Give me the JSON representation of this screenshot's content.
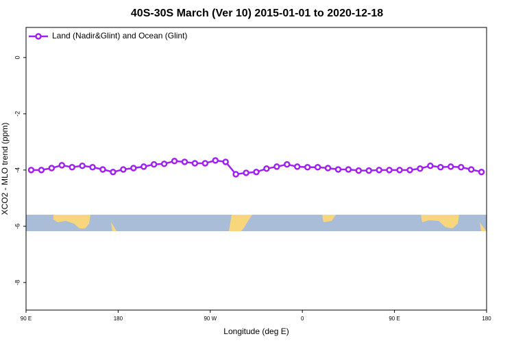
{
  "chart_data": {
    "type": "line",
    "title": "40S-30S March (Ver 10)   2015-01-01 to 2020-12-18",
    "xlabel": "Longitude (deg E)",
    "ylabel": "XCO2 - MLO trend (ppm)",
    "xlim": [
      90,
      540
    ],
    "ylim": [
      -8.98,
      1.07
    ],
    "xticks": [
      {
        "value": 90,
        "label": "90 E"
      },
      {
        "value": 180,
        "label": "180"
      },
      {
        "value": 270,
        "label": "90 W"
      },
      {
        "value": 360,
        "label": "0"
      },
      {
        "value": 450,
        "label": "90 E"
      },
      {
        "value": 540,
        "label": "180"
      }
    ],
    "yticks": [
      0,
      -2,
      -4,
      -6,
      -8
    ],
    "legend": "top-left",
    "series": [
      {
        "name": "Land (Nadir&Glint) and Ocean (Glint)",
        "color": "#a020f0",
        "x": [
          95,
          105,
          115,
          125,
          135,
          145,
          155,
          165,
          175,
          185,
          195,
          205,
          215,
          225,
          235,
          245,
          255,
          265,
          275,
          285,
          295,
          305,
          315,
          325,
          335,
          345,
          355,
          365,
          375,
          385,
          395,
          405,
          415,
          425,
          435,
          445,
          455,
          465,
          475,
          485,
          495,
          505,
          515,
          525,
          535
        ],
        "values": [
          -4.0,
          -4.0,
          -3.93,
          -3.83,
          -3.9,
          -3.85,
          -3.9,
          -3.98,
          -4.07,
          -3.98,
          -3.93,
          -3.88,
          -3.8,
          -3.78,
          -3.68,
          -3.71,
          -3.76,
          -3.76,
          -3.66,
          -3.71,
          -4.15,
          -4.1,
          -4.07,
          -3.95,
          -3.88,
          -3.8,
          -3.88,
          -3.9,
          -3.9,
          -3.93,
          -3.98,
          -3.98,
          -4.02,
          -4.02,
          -4.0,
          -4.0,
          -4.0,
          -4.0,
          -3.95,
          -3.85,
          -3.9,
          -3.88,
          -3.9,
          -3.98,
          -4.07
        ]
      }
    ]
  }
}
